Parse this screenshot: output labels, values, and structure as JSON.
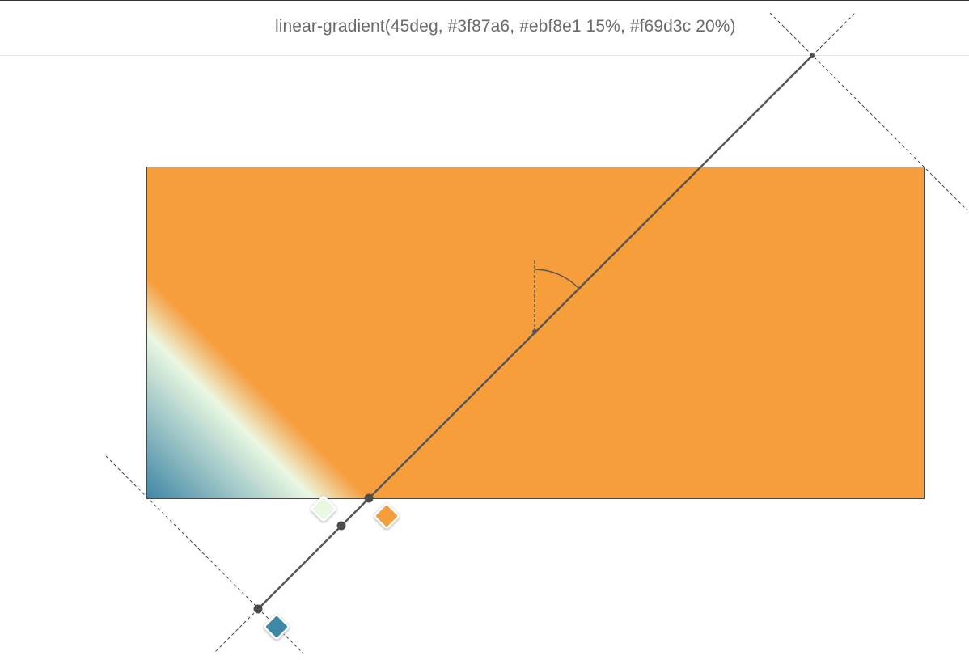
{
  "header": {
    "css_value": "linear-gradient(45deg, #3f87a6, #ebf8e1 15%, #f69d3c 20%)"
  },
  "gradient": {
    "type": "linear",
    "angle_deg": 45,
    "stops": [
      {
        "color": "#3f87a6",
        "position_pct": 0
      },
      {
        "color": "#ebf8e1",
        "position_pct": 15
      },
      {
        "color": "#f69d3c",
        "position_pct": 20
      }
    ]
  },
  "colors": {
    "line": "#555555",
    "guide": "#444444",
    "handle_border": "#ffffff"
  }
}
